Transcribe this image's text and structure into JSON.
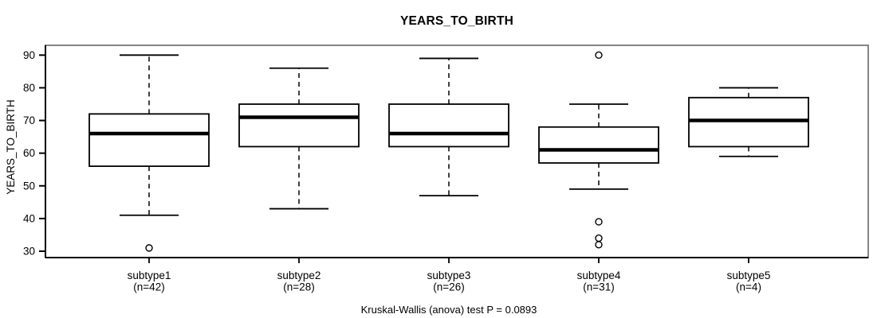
{
  "chart_data": {
    "type": "boxplot",
    "title": "YEARS_TO_BIRTH",
    "ylabel": "YEARS_TO_BIRTH",
    "xlabel": "",
    "y_ticks": [
      30,
      40,
      50,
      60,
      70,
      80,
      90
    ],
    "ylim": [
      28,
      93
    ],
    "grid": false,
    "legend": "none",
    "categories": [
      "subtype1",
      "subtype2",
      "subtype3",
      "subtype4",
      "subtype5"
    ],
    "groups": [
      {
        "label": "subtype1",
        "sublabel": "(n=42)",
        "n": 42,
        "whisker_low": 41,
        "q1": 56,
        "median": 66,
        "q3": 72,
        "whisker_high": 90,
        "outliers": [
          31
        ]
      },
      {
        "label": "subtype2",
        "sublabel": "(n=28)",
        "n": 28,
        "whisker_low": 43,
        "q1": 62,
        "median": 71,
        "q3": 75,
        "whisker_high": 86,
        "outliers": []
      },
      {
        "label": "subtype3",
        "sublabel": "(n=26)",
        "n": 26,
        "whisker_low": 47,
        "q1": 62,
        "median": 66,
        "q3": 75,
        "whisker_high": 89,
        "outliers": []
      },
      {
        "label": "subtype4",
        "sublabel": "(n=31)",
        "n": 31,
        "whisker_low": 49,
        "q1": 57,
        "median": 61,
        "q3": 68,
        "whisker_high": 75,
        "outliers": [
          90,
          39,
          34,
          32
        ]
      },
      {
        "label": "subtype5",
        "sublabel": "(n=4)",
        "n": 4,
        "whisker_low": 59,
        "q1": 62,
        "median": 70,
        "q3": 77,
        "whisker_high": 80,
        "outliers": []
      }
    ],
    "stat_test": "Kruskal-Wallis (anova) test P = 0.0893",
    "colors": {
      "box_fill": "#ffffff",
      "line": "#000000",
      "median": "#000000",
      "border": "#858585"
    }
  }
}
